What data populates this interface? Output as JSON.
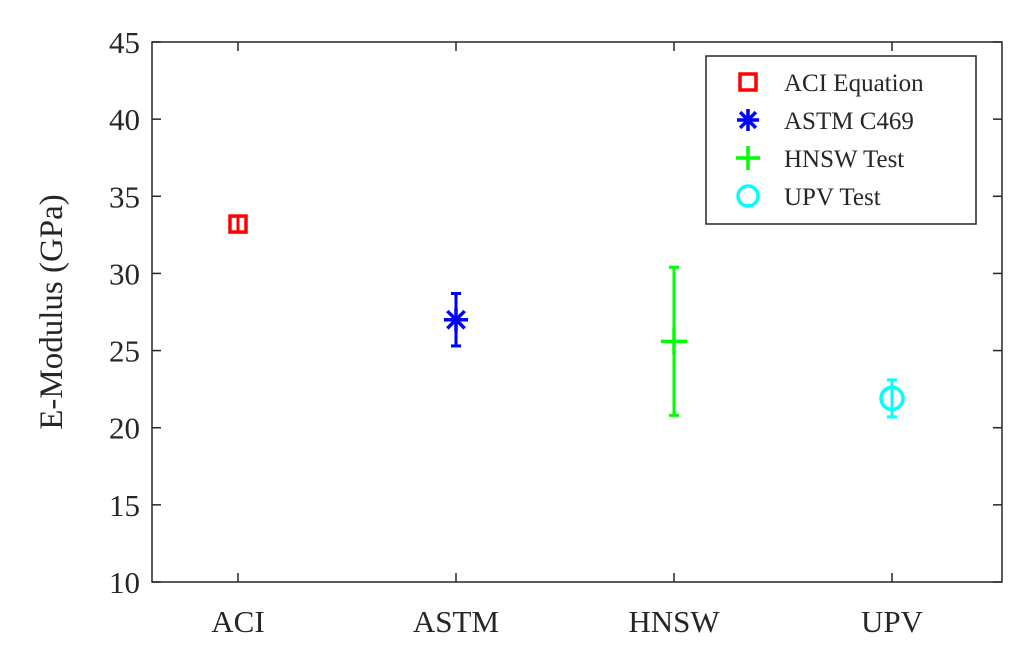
{
  "chart_data": {
    "type": "scatter",
    "title": "",
    "xlabel": "",
    "ylabel": "E-Modulus (GPa)",
    "ylim": [
      10,
      45
    ],
    "yticks": [
      10,
      15,
      20,
      25,
      30,
      35,
      40,
      45
    ],
    "categories": [
      "ACI",
      "ASTM",
      "HNSW",
      "UPV"
    ],
    "grid": false,
    "legend_position": "top-right",
    "series": [
      {
        "name": "ACI Equation",
        "marker": "square",
        "color": "#ff0000",
        "points": [
          {
            "category": "ACI",
            "y": 33.2,
            "err_low": 33.2,
            "err_high": 33.2
          }
        ]
      },
      {
        "name": "ASTM C469",
        "marker": "asterisk",
        "color": "#0000ff",
        "points": [
          {
            "category": "ASTM",
            "y": 27.0,
            "err_low": 25.3,
            "err_high": 28.7
          }
        ]
      },
      {
        "name": "HNSW Test",
        "marker": "plus",
        "color": "#00ff00",
        "points": [
          {
            "category": "HNSW",
            "y": 25.6,
            "err_low": 20.8,
            "err_high": 30.4
          }
        ]
      },
      {
        "name": "UPV Test",
        "marker": "circle",
        "color": "#00ffff",
        "points": [
          {
            "category": "UPV",
            "y": 21.9,
            "err_low": 20.7,
            "err_high": 23.1
          }
        ]
      }
    ]
  }
}
